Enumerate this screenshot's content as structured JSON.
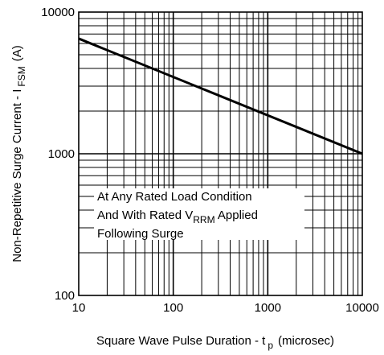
{
  "chart_data": {
    "type": "line",
    "xscale": "log",
    "yscale": "log",
    "xlim": [
      10,
      10000
    ],
    "ylim": [
      100,
      10000
    ],
    "grid": true,
    "xticks": [
      "10",
      "100",
      "1000",
      "10000"
    ],
    "yticks": [
      "100",
      "1000",
      "10000"
    ],
    "xlabel": {
      "main": "Square Wave Pulse Duration - t",
      "sub": "p",
      "unit": "(microsec)"
    },
    "ylabel": {
      "main": "Non-Repetitive Surge Current - I",
      "sub": "FSM",
      "unit": "(A)"
    },
    "series": [
      {
        "x": [
          10,
          10000
        ],
        "y": [
          6500,
          1000
        ],
        "color": "#000000"
      }
    ],
    "annotation": {
      "line1": "At Any Rated Load Condition",
      "line2_pre": "And With Rated V",
      "line2_sub": "RRM",
      "line2_post": " Applied",
      "line3": "Following Surge"
    }
  }
}
